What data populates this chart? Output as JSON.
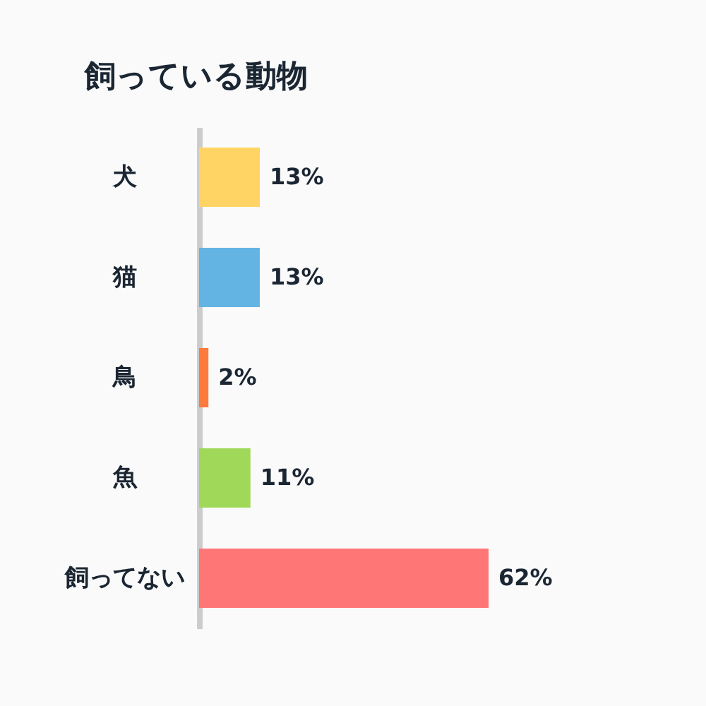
{
  "chart_data": {
    "type": "bar",
    "title": "飼っている動物",
    "orientation": "horizontal",
    "categories": [
      "犬",
      "猫",
      "鳥",
      "魚",
      "飼ってない"
    ],
    "values": [
      13,
      13,
      2,
      11,
      62
    ],
    "value_labels": [
      "13%",
      "13%",
      "2%",
      "11%",
      "62%"
    ],
    "colors": [
      "#ffd464",
      "#63b3e3",
      "#ff7a3d",
      "#a0d95a",
      "#ff7676"
    ],
    "grid": false
  }
}
